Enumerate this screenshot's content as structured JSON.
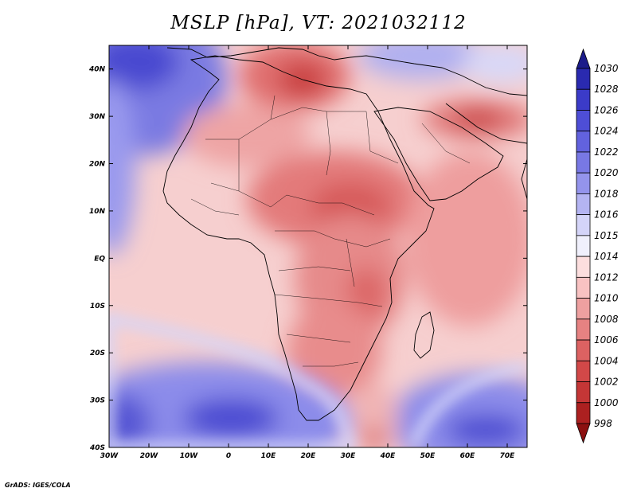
{
  "title": "MSLP [hPa], VT: 2021032112",
  "credit": "GrADS: IGES/COLA",
  "map": {
    "lon_range": [
      -30,
      75
    ],
    "lat_range": [
      -40,
      45
    ],
    "lon_ticks": [
      {
        "value": -30,
        "label": "30W"
      },
      {
        "value": -20,
        "label": "20W"
      },
      {
        "value": -10,
        "label": "10W"
      },
      {
        "value": 0,
        "label": "0"
      },
      {
        "value": 10,
        "label": "10E"
      },
      {
        "value": 20,
        "label": "20E"
      },
      {
        "value": 30,
        "label": "30E"
      },
      {
        "value": 40,
        "label": "40E"
      },
      {
        "value": 50,
        "label": "50E"
      },
      {
        "value": 60,
        "label": "60E"
      },
      {
        "value": 70,
        "label": "70E"
      }
    ],
    "lat_ticks": [
      {
        "value": 40,
        "label": "40N"
      },
      {
        "value": 30,
        "label": "30N"
      },
      {
        "value": 20,
        "label": "20N"
      },
      {
        "value": 10,
        "label": "10N"
      },
      {
        "value": 0,
        "label": "EQ"
      },
      {
        "value": -10,
        "label": "10S"
      },
      {
        "value": -20,
        "label": "20S"
      },
      {
        "value": -30,
        "label": "30S"
      },
      {
        "value": -40,
        "label": "40S"
      }
    ]
  },
  "colorbar": {
    "levels": [
      "1030",
      "1028",
      "1026",
      "1024",
      "1022",
      "1020",
      "1018",
      "1016",
      "1015",
      "1014",
      "1012",
      "1010",
      "1008",
      "1006",
      "1004",
      "1002",
      "1000",
      "998"
    ],
    "colors": [
      "#1c1c8a",
      "#2a2ab0",
      "#3b3bc8",
      "#4e4ed6",
      "#6262de",
      "#7878e4",
      "#9494ec",
      "#b4b4f2",
      "#d4d4f8",
      "#f0f0fc",
      "#fcdede",
      "#f8c2c2",
      "#eea0a0",
      "#e68282",
      "#dc6262",
      "#d24848",
      "#c43636",
      "#ac2020",
      "#8c1010"
    ]
  }
}
